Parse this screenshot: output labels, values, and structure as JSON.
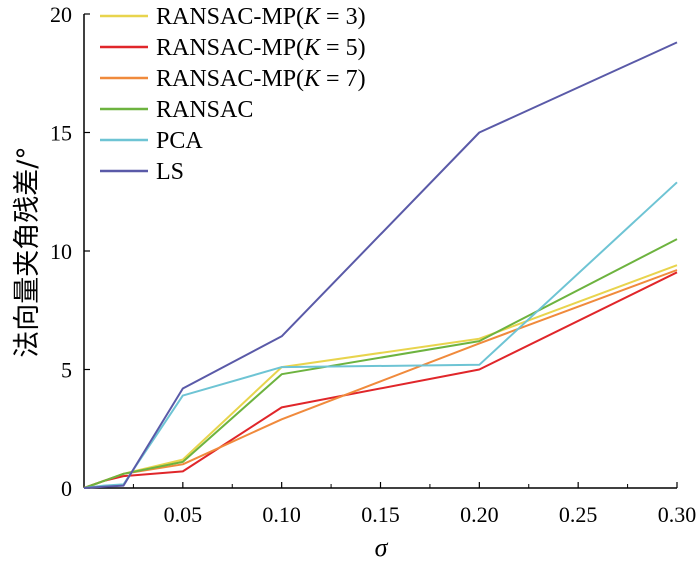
{
  "chart_data": {
    "type": "line",
    "xlabel": "σ",
    "ylabel": "法向量夹角残差/°",
    "xlim": [
      0,
      0.3
    ],
    "ylim": [
      0,
      20
    ],
    "xticks": [
      0.05,
      0.1,
      0.15,
      0.2,
      0.25,
      0.3
    ],
    "xtick_labels": [
      "0.05",
      "0.10",
      "0.15",
      "0.20",
      "0.25",
      "0.30"
    ],
    "yticks": [
      0,
      5,
      10,
      15,
      20
    ],
    "ytick_labels": [
      "0",
      "5",
      "10",
      "15",
      "20"
    ],
    "legend_position": "top-left",
    "series": [
      {
        "name": "RANSAC-MP(K = 3)",
        "color": "#e8d44d",
        "x": [
          0,
          0.01,
          0.02,
          0.05,
          0.1,
          0.2,
          0.3
        ],
        "y": [
          0,
          0.3,
          0.6,
          1.2,
          5.1,
          6.3,
          9.4
        ]
      },
      {
        "name": "RANSAC-MP(K = 5)",
        "color": "#e0262a",
        "x": [
          0,
          0.01,
          0.02,
          0.05,
          0.1,
          0.2,
          0.3
        ],
        "y": [
          0,
          0.3,
          0.5,
          0.7,
          3.4,
          5.0,
          9.1
        ]
      },
      {
        "name": "RANSAC-MP(K = 7)",
        "color": "#f08a3c",
        "x": [
          0,
          0.01,
          0.02,
          0.05,
          0.1,
          0.2,
          0.3
        ],
        "y": [
          0,
          0.3,
          0.6,
          1.0,
          2.9,
          6.1,
          9.2
        ]
      },
      {
        "name": "RANSAC",
        "color": "#6db33f",
        "x": [
          0,
          0.01,
          0.02,
          0.05,
          0.1,
          0.2,
          0.3
        ],
        "y": [
          0,
          0.3,
          0.6,
          1.1,
          4.8,
          6.2,
          10.5
        ]
      },
      {
        "name": "PCA",
        "color": "#6ec4d4",
        "x": [
          0,
          0.01,
          0.02,
          0.05,
          0.1,
          0.2,
          0.3
        ],
        "y": [
          0,
          0.1,
          0.15,
          3.9,
          5.1,
          5.2,
          12.9
        ]
      },
      {
        "name": "LS",
        "color": "#5a5aa8",
        "x": [
          0,
          0.01,
          0.02,
          0.05,
          0.1,
          0.2,
          0.3
        ],
        "y": [
          0,
          0.05,
          0.1,
          4.2,
          6.4,
          15.0,
          18.8
        ]
      }
    ],
    "grid": false
  }
}
